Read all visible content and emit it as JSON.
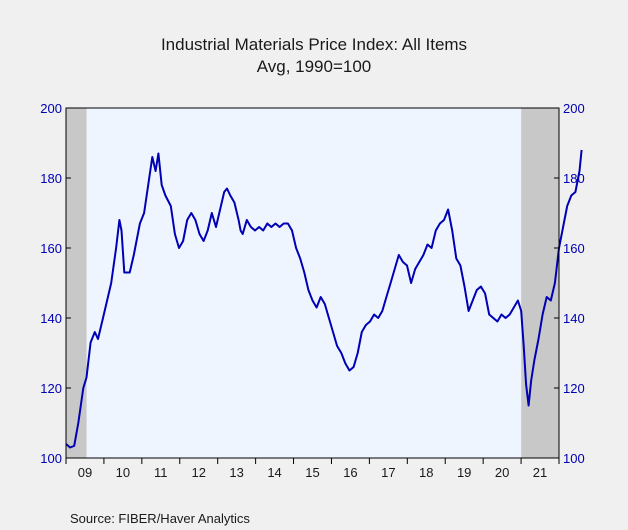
{
  "chart_data": {
    "type": "line",
    "title": "Industrial Materials Price Index: All Items",
    "subtitle": "Avg, 1990=100",
    "source": "Source:   FIBER/Haver Analytics",
    "ylim": [
      100,
      200
    ],
    "y_ticks": [
      100,
      120,
      140,
      160,
      180,
      200
    ],
    "y_tick_labels": [
      "100",
      "120",
      "140",
      "160",
      "180",
      "200"
    ],
    "xlim": [
      2009.0,
      2021.0
    ],
    "x_tick_labels": [
      "09",
      "10",
      "11",
      "12",
      "13",
      "14",
      "15",
      "16",
      "17",
      "18",
      "19",
      "20",
      "21"
    ],
    "grid": false,
    "recessions": [
      [
        2009.0,
        2009.5
      ],
      [
        2020.08,
        2021.0
      ]
    ],
    "colors": {
      "line": "#0000b4",
      "plot_bg": "#eef5ff",
      "recession": "#c8c8c8",
      "axis_text": "#0000b4"
    },
    "series": [
      {
        "values": [
          [
            2009.0,
            104
          ],
          [
            2009.1,
            103
          ],
          [
            2009.2,
            103.5
          ],
          [
            2009.3,
            110
          ],
          [
            2009.42,
            120
          ],
          [
            2009.5,
            123
          ],
          [
            2009.6,
            133
          ],
          [
            2009.7,
            136
          ],
          [
            2009.78,
            134
          ],
          [
            2009.9,
            140
          ],
          [
            2010.0,
            145
          ],
          [
            2010.1,
            150
          ],
          [
            2010.22,
            160
          ],
          [
            2010.3,
            168
          ],
          [
            2010.35,
            165
          ],
          [
            2010.42,
            153
          ],
          [
            2010.55,
            153
          ],
          [
            2010.65,
            158
          ],
          [
            2010.8,
            167
          ],
          [
            2010.9,
            170
          ],
          [
            2011.0,
            178
          ],
          [
            2011.1,
            186
          ],
          [
            2011.18,
            182
          ],
          [
            2011.25,
            187
          ],
          [
            2011.33,
            178
          ],
          [
            2011.42,
            175
          ],
          [
            2011.55,
            172
          ],
          [
            2011.65,
            164
          ],
          [
            2011.75,
            160
          ],
          [
            2011.85,
            162
          ],
          [
            2011.95,
            168
          ],
          [
            2012.05,
            170
          ],
          [
            2012.15,
            168
          ],
          [
            2012.25,
            164
          ],
          [
            2012.35,
            162
          ],
          [
            2012.45,
            165
          ],
          [
            2012.55,
            170
          ],
          [
            2012.65,
            166
          ],
          [
            2012.75,
            171
          ],
          [
            2012.85,
            176
          ],
          [
            2012.92,
            177
          ],
          [
            2013.0,
            175
          ],
          [
            2013.1,
            173
          ],
          [
            2013.2,
            168
          ],
          [
            2013.25,
            165
          ],
          [
            2013.3,
            164
          ],
          [
            2013.4,
            168
          ],
          [
            2013.5,
            166
          ],
          [
            2013.6,
            165
          ],
          [
            2013.7,
            166
          ],
          [
            2013.8,
            165
          ],
          [
            2013.9,
            167
          ],
          [
            2014.0,
            166
          ],
          [
            2014.1,
            167
          ],
          [
            2014.2,
            166
          ],
          [
            2014.3,
            167
          ],
          [
            2014.4,
            167
          ],
          [
            2014.5,
            165
          ],
          [
            2014.6,
            160
          ],
          [
            2014.7,
            157
          ],
          [
            2014.8,
            153
          ],
          [
            2014.9,
            148
          ],
          [
            2015.0,
            145
          ],
          [
            2015.1,
            143
          ],
          [
            2015.2,
            146
          ],
          [
            2015.3,
            144
          ],
          [
            2015.4,
            140
          ],
          [
            2015.5,
            136
          ],
          [
            2015.6,
            132
          ],
          [
            2015.7,
            130
          ],
          [
            2015.8,
            127
          ],
          [
            2015.9,
            125
          ],
          [
            2016.0,
            126
          ],
          [
            2016.1,
            130
          ],
          [
            2016.2,
            136
          ],
          [
            2016.3,
            138
          ],
          [
            2016.4,
            139
          ],
          [
            2016.5,
            141
          ],
          [
            2016.6,
            140
          ],
          [
            2016.7,
            142
          ],
          [
            2016.8,
            146
          ],
          [
            2016.9,
            150
          ],
          [
            2017.0,
            154
          ],
          [
            2017.1,
            158
          ],
          [
            2017.2,
            156
          ],
          [
            2017.3,
            155
          ],
          [
            2017.4,
            150
          ],
          [
            2017.5,
            154
          ],
          [
            2017.6,
            156
          ],
          [
            2017.7,
            158
          ],
          [
            2017.8,
            161
          ],
          [
            2017.9,
            160
          ],
          [
            2018.0,
            165
          ],
          [
            2018.1,
            167
          ],
          [
            2018.2,
            168
          ],
          [
            2018.3,
            171
          ],
          [
            2018.4,
            165
          ],
          [
            2018.5,
            157
          ],
          [
            2018.6,
            155
          ],
          [
            2018.7,
            149
          ],
          [
            2018.8,
            142
          ],
          [
            2018.9,
            145
          ],
          [
            2019.0,
            148
          ],
          [
            2019.1,
            149
          ],
          [
            2019.2,
            147
          ],
          [
            2019.3,
            141
          ],
          [
            2019.4,
            140
          ],
          [
            2019.5,
            139
          ],
          [
            2019.6,
            141
          ],
          [
            2019.7,
            140
          ],
          [
            2019.8,
            141
          ],
          [
            2019.9,
            143
          ],
          [
            2020.0,
            145
          ],
          [
            2020.08,
            142
          ],
          [
            2020.14,
            132
          ],
          [
            2020.2,
            121
          ],
          [
            2020.26,
            115
          ],
          [
            2020.32,
            122
          ],
          [
            2020.4,
            128
          ],
          [
            2020.5,
            134
          ],
          [
            2020.6,
            141
          ],
          [
            2020.7,
            146
          ],
          [
            2020.8,
            145
          ],
          [
            2020.9,
            150
          ],
          [
            2021.0,
            160
          ],
          [
            2021.1,
            166
          ],
          [
            2021.2,
            172
          ],
          [
            2021.3,
            175
          ],
          [
            2021.4,
            176
          ],
          [
            2021.5,
            182
          ],
          [
            2021.55,
            188
          ]
        ]
      }
    ]
  }
}
